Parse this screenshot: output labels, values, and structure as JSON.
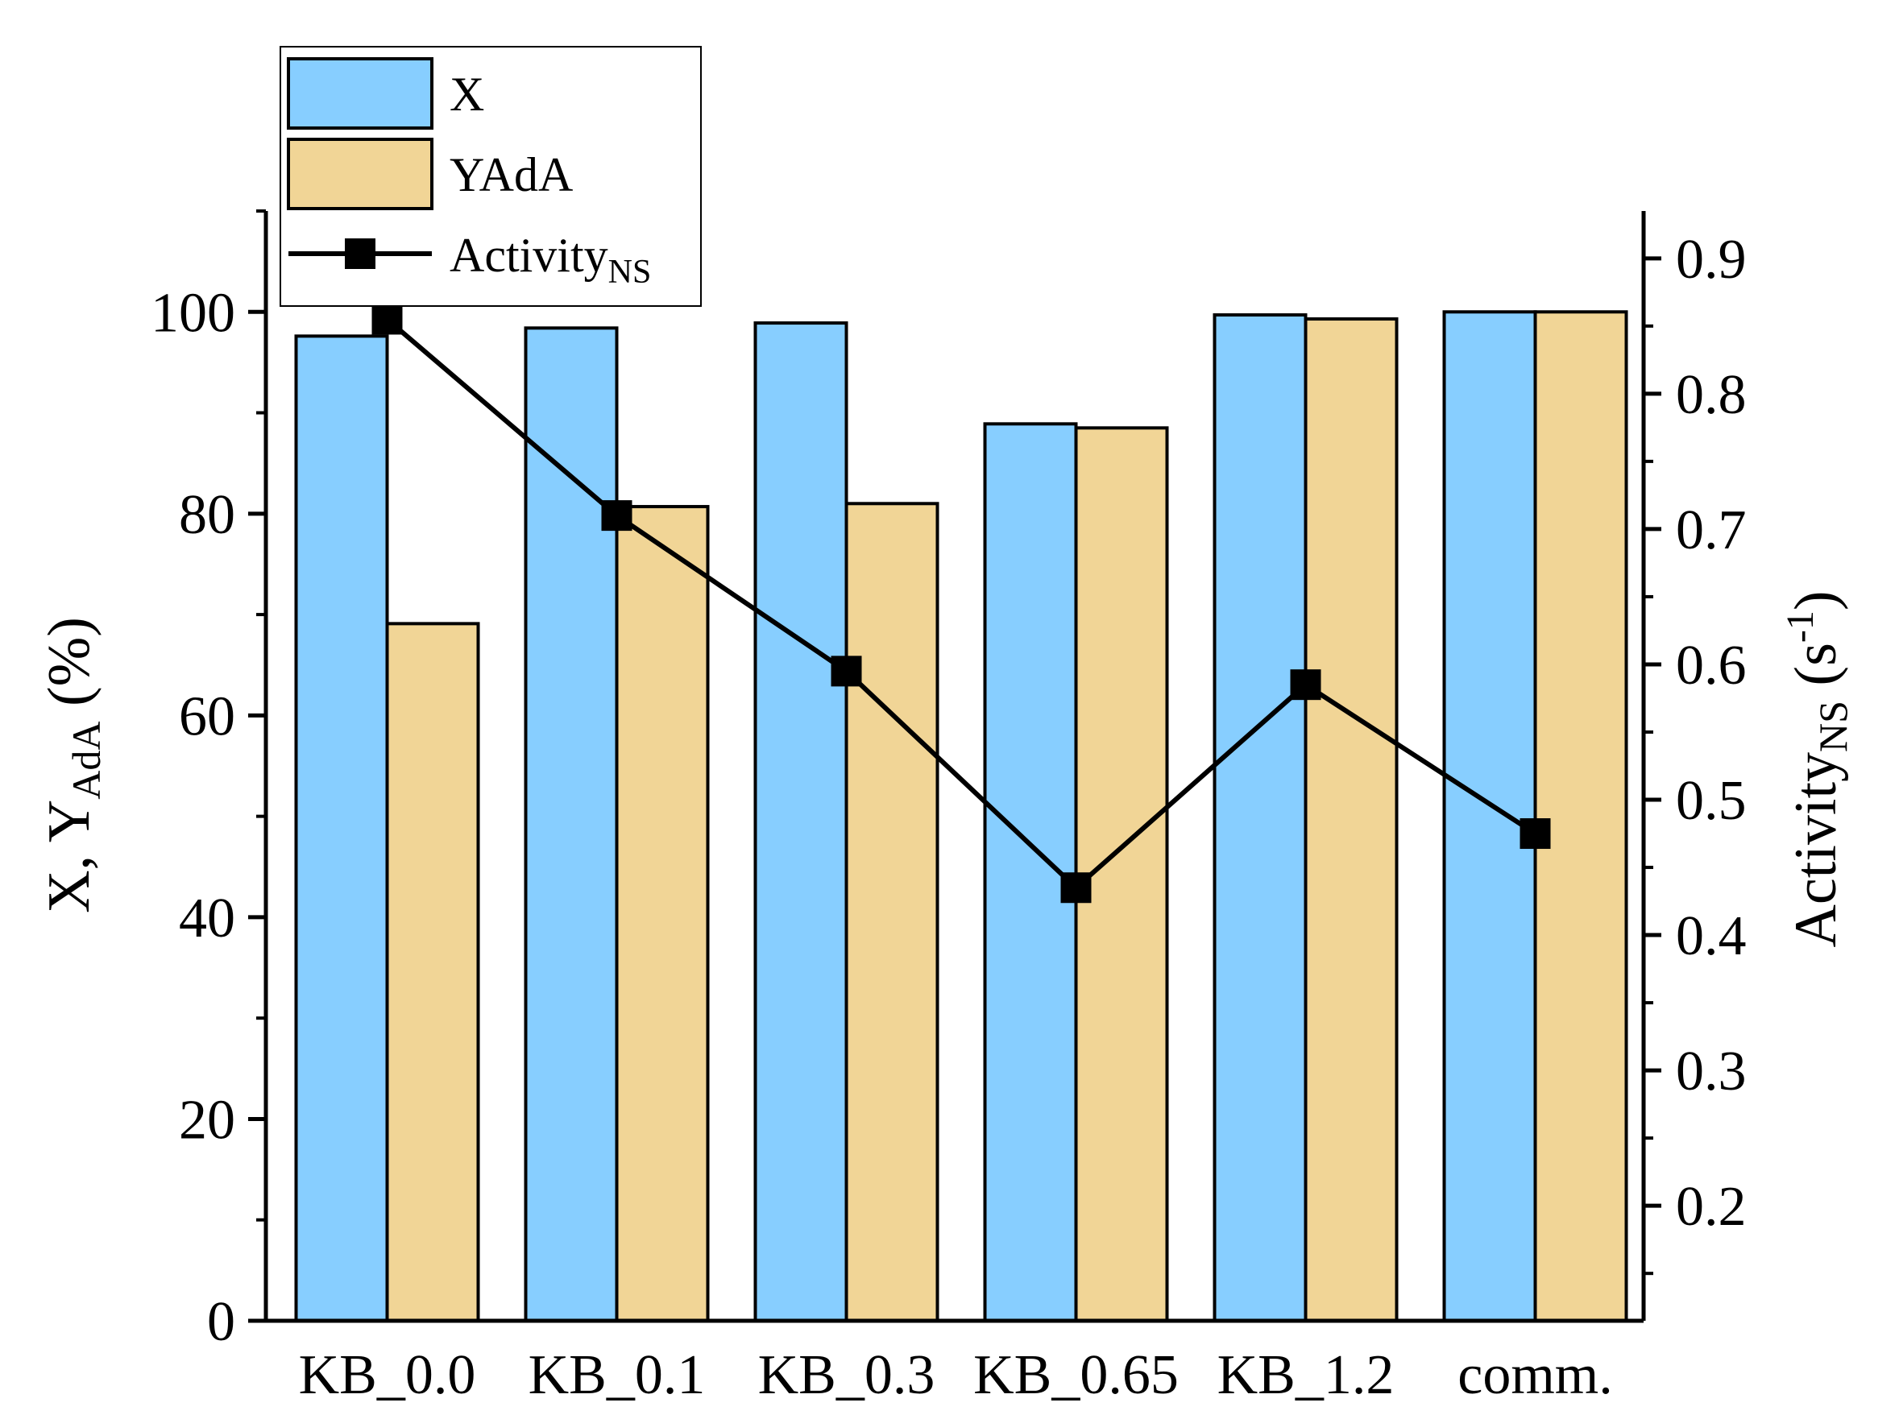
{
  "chart_data": {
    "type": "bar",
    "categories": [
      "KB_0.0",
      "KB_0.1",
      "KB_0.3",
      "KB_0.65",
      "KB_1.2",
      "comm."
    ],
    "series": [
      {
        "name": "X",
        "kind": "bar",
        "axis": "left",
        "color": "#87CEFF",
        "values": [
          97.6,
          98.4,
          98.9,
          88.9,
          99.7,
          100.0
        ]
      },
      {
        "name": "YAdA",
        "kind": "bar",
        "axis": "left",
        "color": "#F1D596",
        "values": [
          69.1,
          80.7,
          81.0,
          88.5,
          99.3,
          100.0
        ]
      },
      {
        "name": "Activity",
        "name_sub": "NS",
        "kind": "line",
        "marker": "square",
        "axis": "right",
        "color": "#000000",
        "values": [
          0.855,
          0.71,
          0.595,
          0.435,
          0.585,
          0.475
        ]
      }
    ],
    "y_left": {
      "label_main": "X, Y",
      "label_sub": "AdA",
      "label_tail": " (%)",
      "min": 0,
      "max": 110,
      "ticks": [
        0,
        20,
        40,
        60,
        80,
        100
      ],
      "minor_ticks": [
        10,
        30,
        50,
        70,
        90,
        110
      ]
    },
    "y_right": {
      "label_main": "Activity",
      "label_sub": "NS",
      "label_tail": " (s",
      "label_sup": "-1",
      "label_end": ")",
      "min": 0.115,
      "max": 0.935,
      "ticks": [
        "0.2",
        "0.3",
        "0.4",
        "0.5",
        "0.6",
        "0.7",
        "0.8",
        "0.9"
      ],
      "minor_ticks": [
        0.15,
        0.25,
        0.35,
        0.45,
        0.55,
        0.65,
        0.75,
        0.85
      ]
    },
    "legend": {
      "position": "top-left",
      "entries": [
        {
          "label": "X",
          "swatch": "bar",
          "color": "#87CEFF"
        },
        {
          "label": "YAdA",
          "swatch": "bar",
          "color": "#F1D596"
        },
        {
          "label": "Activity",
          "label_sub": "NS",
          "swatch": "line-square",
          "color": "#000000"
        }
      ]
    },
    "grid": false
  }
}
